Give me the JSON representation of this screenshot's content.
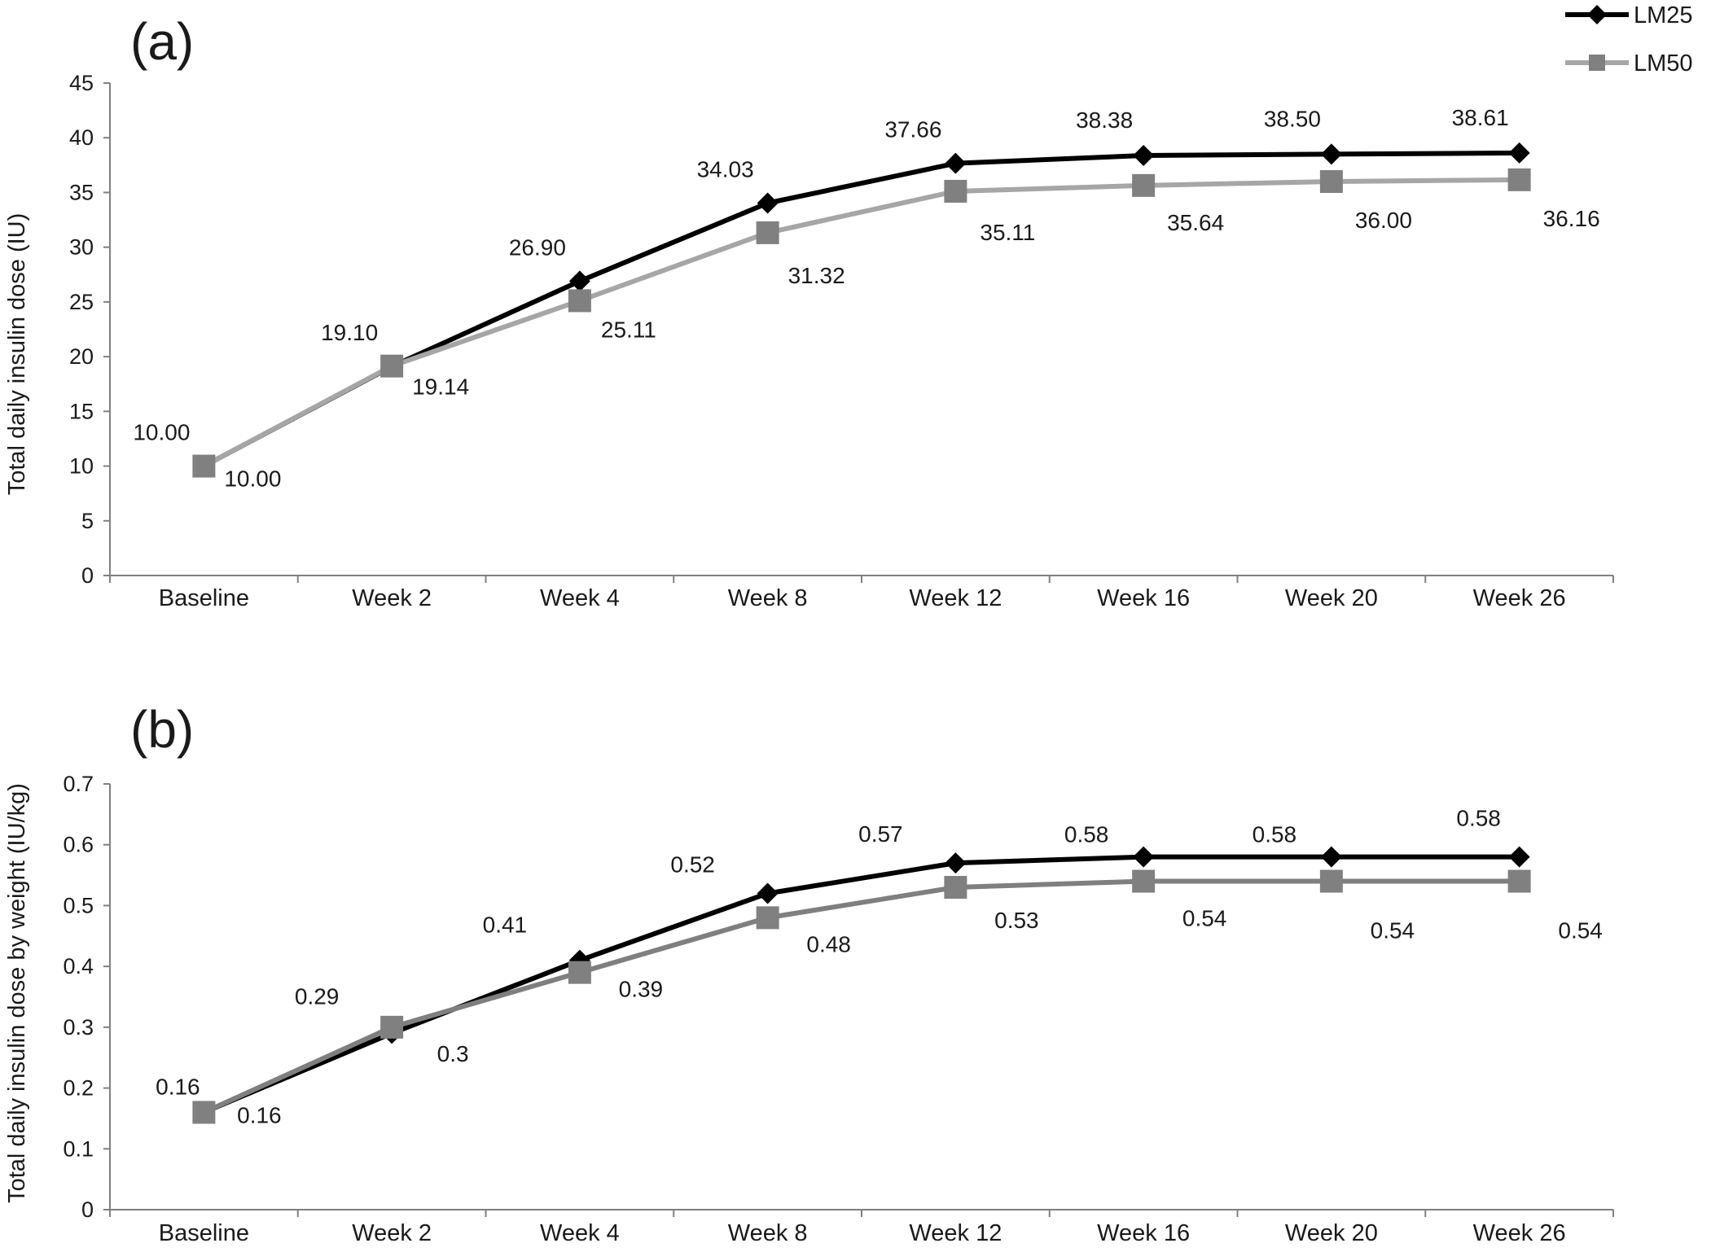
{
  "legend": {
    "series": [
      {
        "name": "LM25",
        "color": "#000000",
        "marker": "diamond"
      },
      {
        "name": "LM50",
        "color": "#a6a6a6",
        "marker_color": "#808080",
        "marker": "square"
      }
    ]
  },
  "chart_data": [
    {
      "type": "line",
      "panel_label": "(a)",
      "ylabel": "Total daily insulin dose (IU)",
      "xlabel": "",
      "categories": [
        "Baseline",
        "Week 2",
        "Week 4",
        "Week 8",
        "Week 12",
        "Week 16",
        "Week 20",
        "Week 26"
      ],
      "ylim": [
        0,
        45
      ],
      "yticks": [
        "0",
        "5",
        "10",
        "15",
        "20",
        "25",
        "30",
        "35",
        "40",
        "45"
      ],
      "grid": false,
      "legend_position": "top-right",
      "series": [
        {
          "name": "LM25",
          "values": [
            10.0,
            19.1,
            26.9,
            34.03,
            37.66,
            38.38,
            38.5,
            38.61
          ],
          "labels": [
            "10.00",
            "19.10",
            "26.90",
            "34.03",
            "37.66",
            "38.38",
            "38.50",
            "38.61"
          ]
        },
        {
          "name": "LM50",
          "values": [
            10.0,
            19.14,
            25.11,
            31.32,
            35.11,
            35.64,
            36.0,
            36.16
          ],
          "labels": [
            "10.00",
            "19.14",
            "25.11",
            "31.32",
            "35.11",
            "35.64",
            "36.00",
            "36.16"
          ]
        }
      ]
    },
    {
      "type": "line",
      "panel_label": "(b)",
      "ylabel": "Total  daily insulin dose by weight  (IU/kg)",
      "xlabel": "",
      "categories": [
        "Baseline",
        "Week 2",
        "Week 4",
        "Week 8",
        "Week 12",
        "Week 16",
        "Week 20",
        "Week 26"
      ],
      "ylim": [
        0,
        0.7
      ],
      "yticks": [
        "0",
        "0.1",
        "0.2",
        "0.3",
        "0.4",
        "0.5",
        "0.6",
        "0.7"
      ],
      "grid": false,
      "series": [
        {
          "name": "LM25",
          "values": [
            0.16,
            0.29,
            0.41,
            0.52,
            0.57,
            0.58,
            0.58,
            0.58
          ],
          "labels": [
            "0.16",
            "0.29",
            "0.41",
            "0.52",
            "0.57",
            "0.58",
            "0.58",
            "0.58"
          ]
        },
        {
          "name": "LM50",
          "values": [
            0.16,
            0.3,
            0.39,
            0.48,
            0.53,
            0.54,
            0.54,
            0.54
          ],
          "labels": [
            "0.16",
            "0.3",
            "0.39",
            "0.48",
            "0.53",
            "0.54",
            "0.54",
            "0.54"
          ]
        }
      ]
    }
  ]
}
